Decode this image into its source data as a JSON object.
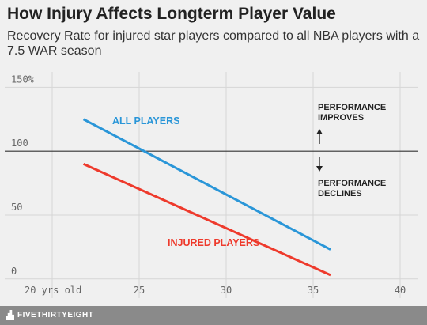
{
  "title": "How Injury Affects Longterm Player Value",
  "subtitle": "Recovery Rate for injured star players compared to all NBA players with a 7.5 WAR season",
  "footer": {
    "brand": "FIVETHIRTYEIGHT"
  },
  "annotations": {
    "improves": [
      "PERFORMANCE",
      "IMPROVES"
    ],
    "declines": [
      "PERFORMANCE",
      "DECLINES"
    ]
  },
  "colors": {
    "all_players": "#2a96d8",
    "injured_players": "#ee3a2c",
    "reference_line": "#333333"
  },
  "chart_data": {
    "type": "line",
    "title": "How Injury Affects Longterm Player Value",
    "subtitle": "Recovery Rate for injured star players compared to all NBA players with a 7.5 WAR season",
    "xlabel": "",
    "ylabel": "",
    "xlim": [
      20,
      41
    ],
    "ylim": [
      -15,
      162
    ],
    "x_ticks": [
      20,
      25,
      30,
      35,
      40
    ],
    "x_tick_labels": [
      "20 yrs old",
      "25",
      "30",
      "35",
      "40"
    ],
    "y_ticks": [
      0,
      50,
      100,
      150
    ],
    "y_tick_labels": [
      "0",
      "50",
      "100",
      "150%"
    ],
    "grid": true,
    "reference_line": 100,
    "series": [
      {
        "name": "ALL PLAYERS",
        "x": [
          21.8,
          36
        ],
        "y": [
          125,
          23
        ]
      },
      {
        "name": "INJURED PLAYERS",
        "x": [
          21.8,
          36
        ],
        "y": [
          90,
          3
        ]
      }
    ]
  }
}
